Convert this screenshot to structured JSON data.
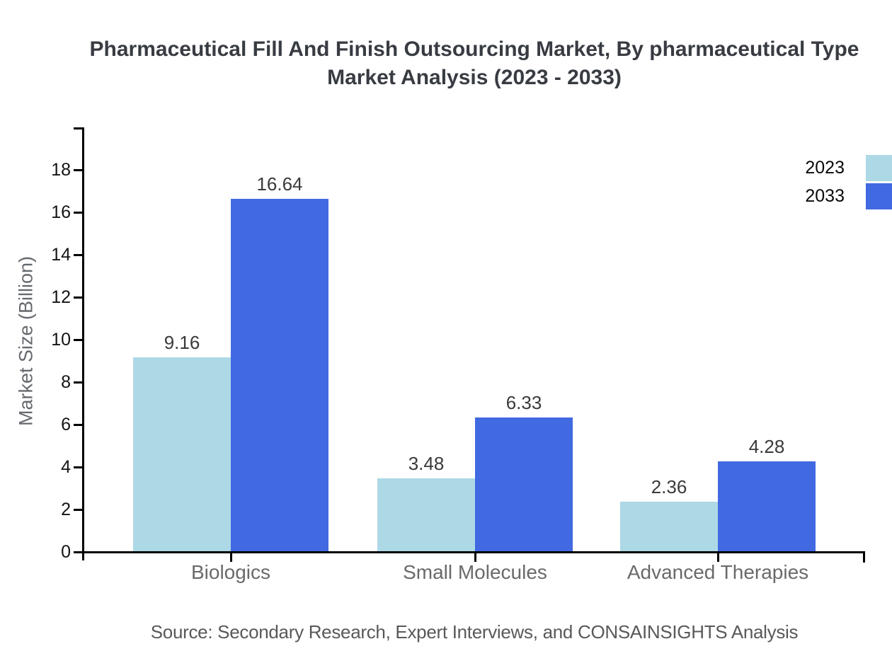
{
  "title": {
    "line1": "Pharmaceutical Fill And Finish Outsourcing Market, By pharmaceutical Type",
    "line2": "Market Analysis (2023 - 2033)"
  },
  "source_note": "Source: Secondary Research, Expert Interviews, and CONSAINSIGHTS Analysis",
  "chart_data": {
    "type": "bar",
    "categories": [
      "Biologics",
      "Small Molecules",
      "Advanced Therapies"
    ],
    "series": [
      {
        "name": "2023",
        "values": [
          9.16,
          3.48,
          2.36
        ],
        "color": "#ADD8E6"
      },
      {
        "name": "2033",
        "values": [
          16.64,
          6.33,
          4.28
        ],
        "color": "#4169E1"
      }
    ],
    "title": "Pharmaceutical Fill And Finish Outsourcing Market, By pharmaceutical Type Market Analysis (2023 - 2033)",
    "xlabel": "",
    "ylabel": "Market Size (Billion)",
    "ylim": [
      0,
      18
    ],
    "ytick_step": 2,
    "grid": false,
    "legend_position": "top-right",
    "value_labels": true
  },
  "colors": {
    "title": "#383c42",
    "axis": "#000000",
    "tick_label": "#141414",
    "category_label": "#6a6a6a",
    "value_label": "#3a3a3a",
    "axis_title": "#66696e",
    "source": "#595959"
  }
}
